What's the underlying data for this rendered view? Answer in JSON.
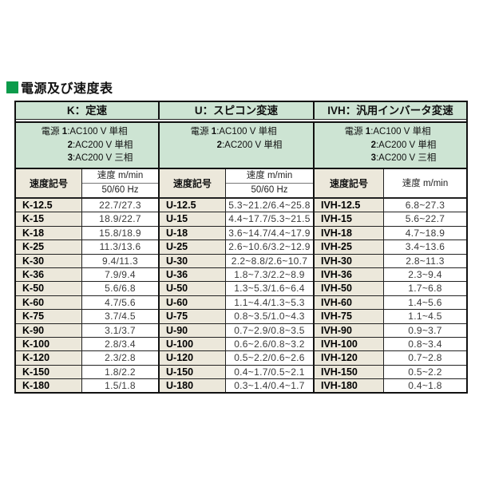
{
  "page": {
    "title": "電源及び速度表",
    "colors": {
      "title_square_green": "#0c9b4b",
      "header_green": "#cde4d3",
      "code_beige": "#ece8db",
      "border_dark": "#111111"
    }
  },
  "sections": [
    {
      "header": "K：定速",
      "power_lines": [
        {
          "label": "電源 ",
          "num": "1",
          "text": ":AC100 V 単相"
        },
        {
          "label": "",
          "num": "2",
          "text": ":AC200 V 単相"
        },
        {
          "label": "",
          "num": "3",
          "text": ":AC200 V 三相"
        }
      ],
      "cols": {
        "code": "速度記号",
        "speed1": "速度 m/min",
        "speed2": "50/60 Hz"
      },
      "rows": [
        [
          "K-12.5",
          "22.7/27.3"
        ],
        [
          "K-15",
          "18.9/22.7"
        ],
        [
          "K-18",
          "15.8/18.9"
        ],
        [
          "K-25",
          "11.3/13.6"
        ],
        [
          "K-30",
          "9.4/11.3"
        ],
        [
          "K-36",
          "7.9/9.4"
        ],
        [
          "K-50",
          "5.6/6.8"
        ],
        [
          "K-60",
          "4.7/5.6"
        ],
        [
          "K-75",
          "3.7/4.5"
        ],
        [
          "K-90",
          "3.1/3.7"
        ],
        [
          "K-100",
          "2.8/3.4"
        ],
        [
          "K-120",
          "2.3/2.8"
        ],
        [
          "K-150",
          "1.8/2.2"
        ],
        [
          "K-180",
          "1.5/1.8"
        ]
      ]
    },
    {
      "header": "U：スピコン変速",
      "power_lines": [
        {
          "label": "電源 ",
          "num": "1",
          "text": ":AC100 V 単相"
        },
        {
          "label": "",
          "num": "2",
          "text": ":AC200 V 単相"
        }
      ],
      "cols": {
        "code": "速度記号",
        "speed1": "速度 m/min",
        "speed2": "50/60 Hz"
      },
      "rows": [
        [
          "U-12.5",
          "5.3~21.2/6.4~25.8"
        ],
        [
          "U-15",
          "4.4~17.7/5.3~21.5"
        ],
        [
          "U-18",
          "3.6~14.7/4.4~17.9"
        ],
        [
          "U-25",
          "2.6~10.6/3.2~12.9"
        ],
        [
          "U-30",
          "2.2~8.8/2.6~10.7"
        ],
        [
          "U-36",
          "1.8~7.3/2.2~8.9"
        ],
        [
          "U-50",
          "1.3~5.3/1.6~6.4"
        ],
        [
          "U-60",
          "1.1~4.4/1.3~5.3"
        ],
        [
          "U-75",
          "0.8~3.5/1.0~4.3"
        ],
        [
          "U-90",
          "0.7~2.9/0.8~3.5"
        ],
        [
          "U-100",
          "0.6~2.6/0.8~3.2"
        ],
        [
          "U-120",
          "0.5~2.2/0.6~2.6"
        ],
        [
          "U-150",
          "0.4~1.7/0.5~2.1"
        ],
        [
          "U-180",
          "0.3~1.4/0.4~1.7"
        ]
      ]
    },
    {
      "header": "IVH：汎用インバータ変速",
      "power_lines": [
        {
          "label": "電源 ",
          "num": "1",
          "text": ":AC100 V 単相"
        },
        {
          "label": "",
          "num": "2",
          "text": ":AC200 V 単相"
        },
        {
          "label": "",
          "num": "3",
          "text": ":AC200 V 三相"
        }
      ],
      "cols": {
        "code": "速度記号",
        "speed1": "速度 m/min"
      },
      "rows": [
        [
          "IVH-12.5",
          "6.8~27.3"
        ],
        [
          "IVH-15",
          "5.6~22.7"
        ],
        [
          "IVH-18",
          "4.7~18.9"
        ],
        [
          "IVH-25",
          "3.4~13.6"
        ],
        [
          "IVH-30",
          "2.8~11.3"
        ],
        [
          "IVH-36",
          "2.3~9.4"
        ],
        [
          "IVH-50",
          "1.7~6.8"
        ],
        [
          "IVH-60",
          "1.4~5.6"
        ],
        [
          "IVH-75",
          "1.1~4.5"
        ],
        [
          "IVH-90",
          "0.9~3.7"
        ],
        [
          "IVH-100",
          "0.8~3.4"
        ],
        [
          "IVH-120",
          "0.7~2.8"
        ],
        [
          "IVH-150",
          "0.5~2.2"
        ],
        [
          "IVH-180",
          "0.4~1.8"
        ]
      ]
    }
  ]
}
